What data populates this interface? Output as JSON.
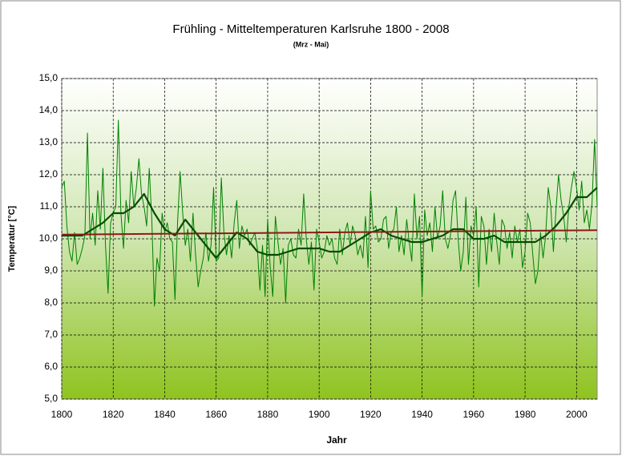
{
  "chart_data": {
    "type": "line",
    "title": "Frühling - Mitteltemperaturen Karlsruhe 1800 - 2008",
    "subtitle": "(Mrz - Mai)",
    "x_label": "Jahr",
    "y_label": "Temperatur [°C]",
    "x": [
      1800,
      1801,
      1802,
      1803,
      1804,
      1805,
      1806,
      1807,
      1808,
      1809,
      1810,
      1811,
      1812,
      1813,
      1814,
      1815,
      1816,
      1817,
      1818,
      1819,
      1820,
      1821,
      1822,
      1823,
      1824,
      1825,
      1826,
      1827,
      1828,
      1829,
      1830,
      1831,
      1832,
      1833,
      1834,
      1835,
      1836,
      1837,
      1838,
      1839,
      1840,
      1841,
      1842,
      1843,
      1844,
      1845,
      1846,
      1847,
      1848,
      1849,
      1850,
      1851,
      1852,
      1853,
      1854,
      1855,
      1856,
      1857,
      1858,
      1859,
      1860,
      1861,
      1862,
      1863,
      1864,
      1865,
      1866,
      1867,
      1868,
      1869,
      1870,
      1871,
      1872,
      1873,
      1874,
      1875,
      1876,
      1877,
      1878,
      1879,
      1880,
      1881,
      1882,
      1883,
      1884,
      1885,
      1886,
      1887,
      1888,
      1889,
      1890,
      1891,
      1892,
      1893,
      1894,
      1895,
      1896,
      1897,
      1898,
      1899,
      1900,
      1901,
      1902,
      1903,
      1904,
      1905,
      1906,
      1907,
      1908,
      1909,
      1910,
      1911,
      1912,
      1913,
      1914,
      1915,
      1916,
      1917,
      1918,
      1919,
      1920,
      1921,
      1922,
      1923,
      1924,
      1925,
      1926,
      1927,
      1928,
      1929,
      1930,
      1931,
      1932,
      1933,
      1934,
      1935,
      1936,
      1937,
      1938,
      1939,
      1940,
      1941,
      1942,
      1943,
      1944,
      1945,
      1946,
      1947,
      1948,
      1949,
      1950,
      1951,
      1952,
      1953,
      1954,
      1955,
      1956,
      1957,
      1958,
      1959,
      1960,
      1961,
      1962,
      1963,
      1964,
      1965,
      1966,
      1967,
      1968,
      1969,
      1970,
      1971,
      1972,
      1973,
      1974,
      1975,
      1976,
      1977,
      1978,
      1979,
      1980,
      1981,
      1982,
      1983,
      1984,
      1985,
      1986,
      1987,
      1988,
      1989,
      1990,
      1991,
      1992,
      1993,
      1994,
      1995,
      1996,
      1997,
      1998,
      1999,
      2000,
      2001,
      2002,
      2003,
      2004,
      2005,
      2006,
      2007,
      2008
    ],
    "series": [
      {
        "color": "#008000",
        "width": 1,
        "values": [
          11.6,
          11.8,
          10.4,
          9.6,
          9.3,
          10.2,
          9.2,
          9.4,
          9.7,
          10.1,
          13.3,
          10.0,
          10.8,
          9.8,
          11.5,
          10.3,
          12.2,
          9.8,
          8.3,
          10.5,
          10.8,
          11.0,
          13.7,
          10.8,
          9.7,
          11.2,
          10.5,
          12.1,
          11.0,
          11.6,
          12.5,
          11.4,
          11.0,
          10.4,
          12.2,
          10.6,
          7.9,
          9.4,
          9.0,
          10.8,
          10.2,
          10.5,
          10.0,
          9.9,
          8.1,
          10.5,
          12.1,
          10.8,
          9.8,
          10.3,
          9.3,
          10.8,
          9.5,
          8.5,
          9.0,
          9.4,
          10.2,
          9.3,
          9.8,
          11.6,
          9.3,
          9.4,
          11.9,
          10.2,
          9.5,
          10.1,
          9.4,
          10.5,
          11.2,
          9.7,
          10.4,
          10.1,
          10.3,
          9.8,
          10.0,
          10.2,
          9.7,
          8.4,
          9.8,
          8.2,
          10.6,
          9.1,
          8.2,
          10.7,
          9.9,
          9.2,
          9.7,
          8.0,
          9.8,
          10.0,
          9.5,
          9.4,
          10.3,
          9.8,
          11.4,
          10.0,
          9.2,
          9.9,
          8.4,
          10.3,
          9.9,
          9.4,
          9.6,
          10.1,
          9.8,
          10.0,
          9.4,
          9.2,
          10.3,
          9.5,
          10.2,
          10.5,
          9.8,
          10.4,
          10.1,
          9.5,
          9.8,
          9.4,
          10.7,
          9.1,
          11.5,
          10.3,
          10.4,
          9.9,
          10.0,
          10.6,
          10.7,
          9.7,
          10.2,
          10.3,
          11.0,
          9.6,
          10.1,
          9.5,
          10.6,
          9.9,
          9.3,
          11.4,
          10.0,
          10.7,
          8.2,
          10.9,
          10.1,
          10.5,
          9.6,
          11.0,
          10.0,
          10.4,
          11.5,
          10.0,
          9.7,
          10.1,
          11.2,
          11.5,
          10.0,
          9.0,
          9.6,
          11.3,
          9.2,
          10.4,
          10.1,
          11.0,
          8.5,
          10.7,
          10.4,
          9.2,
          10.3,
          9.6,
          10.8,
          9.9,
          9.2,
          10.6,
          10.4,
          9.7,
          10.2,
          9.4,
          10.4,
          9.9,
          10.3,
          9.1,
          9.6,
          10.8,
          10.5,
          9.5,
          8.6,
          9.0,
          10.2,
          9.4,
          10.1,
          11.6,
          11.0,
          9.6,
          10.9,
          12.0,
          11.2,
          10.7,
          9.9,
          11.0,
          11.6,
          12.1,
          11.6,
          10.9,
          11.8,
          10.5,
          10.9,
          10.3,
          11.1,
          13.1,
          11.0
        ]
      },
      {
        "color": "#004d00",
        "width": 2.2,
        "x": [
          1800,
          1804,
          1808,
          1812,
          1816,
          1820,
          1824,
          1828,
          1832,
          1836,
          1840,
          1844,
          1848,
          1852,
          1856,
          1860,
          1864,
          1868,
          1872,
          1876,
          1880,
          1884,
          1888,
          1892,
          1896,
          1900,
          1904,
          1908,
          1912,
          1916,
          1920,
          1924,
          1928,
          1932,
          1936,
          1940,
          1944,
          1948,
          1952,
          1956,
          1960,
          1964,
          1968,
          1972,
          1976,
          1980,
          1984,
          1988,
          1992,
          1996,
          2000,
          2004,
          2008
        ],
        "values": [
          10.1,
          10.1,
          10.1,
          10.3,
          10.5,
          10.8,
          10.8,
          11.0,
          11.4,
          10.8,
          10.3,
          10.1,
          10.6,
          10.2,
          9.8,
          9.4,
          9.8,
          10.2,
          10.0,
          9.6,
          9.5,
          9.5,
          9.6,
          9.7,
          9.7,
          9.7,
          9.6,
          9.6,
          9.8,
          10.0,
          10.2,
          10.3,
          10.1,
          10.0,
          9.9,
          9.9,
          10.0,
          10.1,
          10.3,
          10.3,
          10.0,
          10.0,
          10.1,
          9.9,
          9.9,
          9.9,
          9.9,
          10.1,
          10.4,
          10.8,
          11.3,
          11.3,
          11.6
        ]
      },
      {
        "color": "#8b1a1a",
        "width": 2,
        "x": [
          1800,
          2008
        ],
        "values": [
          10.13,
          10.27
        ]
      }
    ],
    "xlim": [
      1800,
      2008
    ],
    "xticks": [
      1800,
      1820,
      1840,
      1860,
      1880,
      1900,
      1920,
      1940,
      1960,
      1980,
      2000
    ],
    "ylim": [
      5,
      15
    ],
    "yticks": [
      {
        "value": 5,
        "label": "5,0"
      },
      {
        "value": 6,
        "label": "6,0"
      },
      {
        "value": 7,
        "label": "7,0"
      },
      {
        "value": 8,
        "label": "8,0"
      },
      {
        "value": 9,
        "label": "9,0"
      },
      {
        "value": 10,
        "label": "10,0"
      },
      {
        "value": 11,
        "label": "11,0"
      },
      {
        "value": 12,
        "label": "12,0"
      },
      {
        "value": 13,
        "label": "13,0"
      },
      {
        "value": 14,
        "label": "14,0"
      },
      {
        "value": 15,
        "label": "15,0"
      }
    ],
    "grid": true
  }
}
